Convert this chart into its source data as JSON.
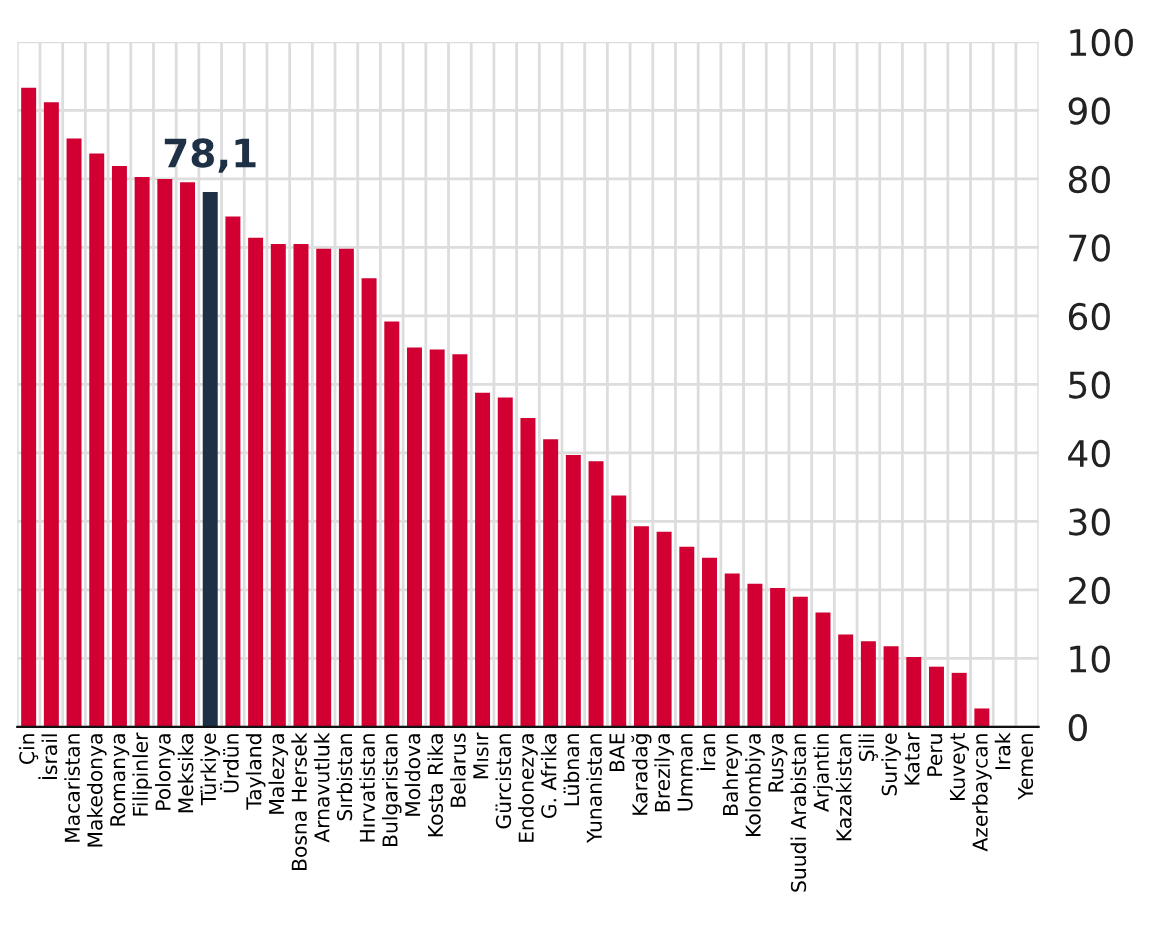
{
  "chart_data": {
    "type": "bar",
    "categories": [
      "Çin",
      "İsrail",
      "Macaristan",
      "Makedonya",
      "Romanya",
      "Filipinler",
      "Polonya",
      "Meksika",
      "Türkiye",
      "Ürdün",
      "Tayland",
      "Malezya",
      "Bosna Hersek",
      "Arnavutluk",
      "Sırbistan",
      "Hırvatistan",
      "Bulgaristan",
      "Moldova",
      "Kosta Rika",
      "Belarus",
      "Mısır",
      "Gürcistan",
      "Endonezya",
      "G. Afrika",
      "Lübnan",
      "Yunanistan",
      "BAE",
      "Karadağ",
      "Brezilya",
      "Umman",
      "İran",
      "Bahreyn",
      "Kolombiya",
      "Rusya",
      "Suudi Arabistan",
      "Arjantin",
      "Kazakistan",
      "Şili",
      "Suriye",
      "Katar",
      "Peru",
      "Kuveyt",
      "Azerbaycan",
      "Irak",
      "Yemen"
    ],
    "values": [
      93.3,
      91.2,
      85.9,
      83.7,
      81.9,
      80.3,
      80.0,
      79.5,
      78.1,
      74.5,
      71.4,
      70.5,
      70.5,
      69.8,
      69.8,
      65.5,
      59.2,
      55.4,
      55.1,
      54.4,
      48.8,
      48.1,
      45.1,
      42.0,
      39.7,
      38.8,
      33.8,
      29.3,
      28.5,
      26.3,
      24.7,
      22.4,
      20.9,
      20.3,
      19.0,
      16.7,
      13.5,
      12.5,
      11.8,
      10.2,
      8.8,
      7.9,
      2.7,
      0,
      0
    ],
    "colors": [
      "#d20032",
      "#d20032",
      "#d20032",
      "#d20032",
      "#d20032",
      "#d20032",
      "#d20032",
      "#d20032",
      "#1e3045",
      "#d20032",
      "#d20032",
      "#d20032",
      "#d20032",
      "#d20032",
      "#d20032",
      "#d20032",
      "#d20032",
      "#d20032",
      "#d20032",
      "#d20032",
      "#d20032",
      "#d20032",
      "#d20032",
      "#d20032",
      "#d20032",
      "#d20032",
      "#d20032",
      "#d20032",
      "#d20032",
      "#d20032",
      "#d20032",
      "#d20032",
      "#d20032",
      "#d20032",
      "#d20032",
      "#d20032",
      "#d20032",
      "#d20032",
      "#d20032",
      "#d20032",
      "#d20032",
      "#d20032",
      "#d20032",
      "#d20032",
      "#d20032"
    ],
    "value_labels": [
      null,
      null,
      null,
      null,
      null,
      null,
      null,
      null,
      "78,1",
      null,
      null,
      null,
      null,
      null,
      null,
      null,
      null,
      null,
      null,
      null,
      null,
      null,
      null,
      null,
      null,
      null,
      null,
      null,
      null,
      null,
      null,
      null,
      null,
      null,
      null,
      null,
      null,
      null,
      null,
      null,
      null,
      null,
      null,
      null,
      null
    ],
    "ylim": [
      0,
      100
    ],
    "yticks": [
      0,
      10,
      20,
      30,
      40,
      50,
      60,
      70,
      80,
      90,
      100
    ],
    "grid": true
  }
}
